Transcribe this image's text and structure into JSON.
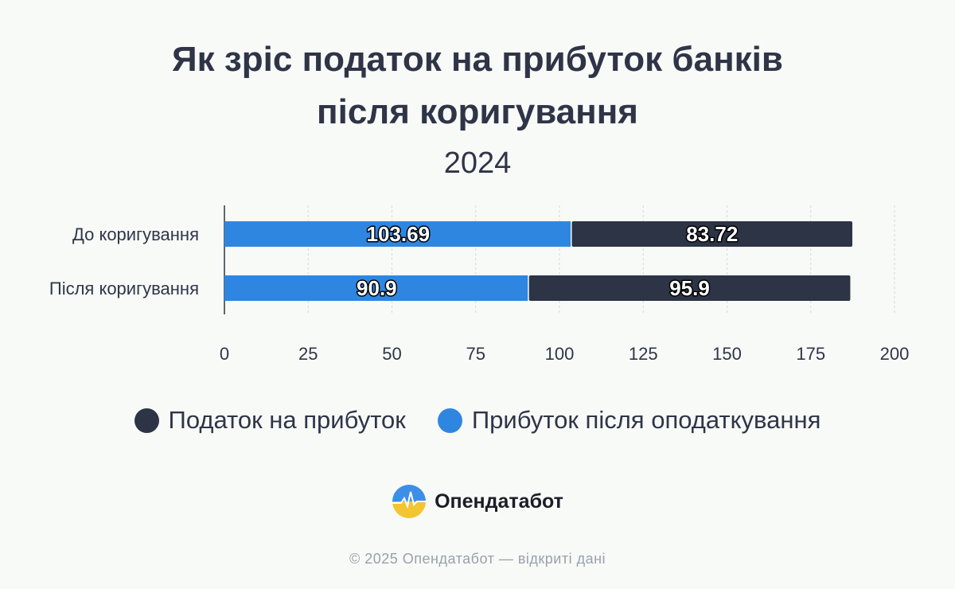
{
  "title_line1": "Як зріс податок на прибуток банків",
  "title_line2": "після коригування",
  "subtitle": "2024",
  "chart_data": {
    "type": "bar",
    "orientation": "horizontal",
    "stacked": true,
    "categories": [
      "До коригування",
      "Після коригування"
    ],
    "series": [
      {
        "name": "Прибуток після оподаткування",
        "values": [
          103.69,
          90.9
        ],
        "color": "#2f86e0",
        "value_labels": [
          "103.69",
          "90.9"
        ]
      },
      {
        "name": "Податок на прибуток",
        "values": [
          83.72,
          95.9
        ],
        "color": "#2d3446",
        "value_labels": [
          "83.72",
          "95.9"
        ]
      }
    ],
    "xlim": [
      0,
      200
    ],
    "xticks": [
      "0",
      "25",
      "50",
      "75",
      "100",
      "125",
      "150",
      "175",
      "200"
    ],
    "grid": true,
    "legend_position": "bottom"
  },
  "legend": [
    {
      "label": "Податок на прибуток",
      "color": "#2d3446"
    },
    {
      "label": "Прибуток після оподаткування",
      "color": "#2f86e0"
    }
  ],
  "logo_text": "Опендатабот",
  "footer": "© 2025 Опендатабот — відкриті дані"
}
